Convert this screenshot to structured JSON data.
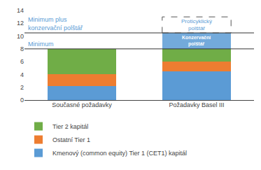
{
  "chart_data": {
    "type": "bar",
    "stacked": true,
    "categories": [
      "Současné požadavky",
      "Požadavky Basel III"
    ],
    "series": [
      {
        "name": "Kmenový (common equity) Tier 1 (CET1) kapitál",
        "color": "#5b9bd5",
        "values": [
          2.2,
          4.5
        ]
      },
      {
        "name": "Ostatní Tier 1",
        "color": "#ed7d31",
        "values": [
          1.8,
          1.5
        ]
      },
      {
        "name": "Tier 2 kapitál",
        "color": "#70ad47",
        "values": [
          4.0,
          2.0
        ]
      },
      {
        "name": "Konzervační\npolštář",
        "color": "#5b9bd5",
        "values": [
          null,
          2.5
        ]
      }
    ],
    "ylim": [
      0,
      14
    ],
    "yticks": [
      0,
      2,
      4,
      6,
      8,
      10,
      12,
      14
    ],
    "grid": false,
    "legend": "bottom",
    "annotations": [
      {
        "text": "Minimum",
        "y": 8.0,
        "shape": "line",
        "color": "#5b9bd5"
      },
      {
        "text": "Minimum plus\nkonzervační polštář",
        "y": 10.5,
        "shape": "line",
        "color": "#5b9bd5"
      },
      {
        "text": "Proticyklický\npolštář",
        "category": "Požadavky Basel III",
        "y_range": [
          10.5,
          13.0
        ],
        "shape": "dashed box",
        "color": "#5b9bd5"
      }
    ]
  }
}
